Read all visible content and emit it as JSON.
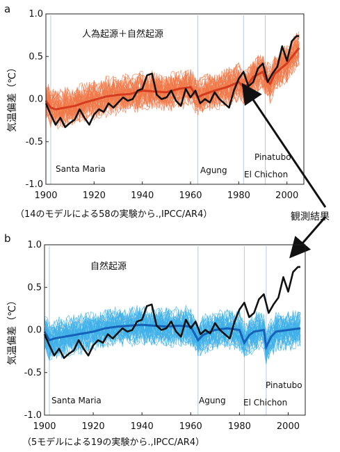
{
  "labels": {
    "observed": "観測結果"
  },
  "chart_data": [
    {
      "type": "line",
      "panel_label": "a",
      "title": "人為起源＋自然起源",
      "caption": "（14のモデルによる58の実験から.,IPCC/AR4）",
      "ylabel": "気温偏差（℃）",
      "xlim": [
        1900,
        2007
      ],
      "ylim": [
        -1.0,
        1.0
      ],
      "xticks": [
        "1900",
        "1920",
        "1940",
        "1960",
        "1980",
        "2000"
      ],
      "yticks": [
        "-1.0",
        "-0.5",
        "0.0",
        "0.5",
        "1.0"
      ],
      "annotations": [
        {
          "text": "Santa Maria",
          "year": 1902
        },
        {
          "text": "Agung",
          "year": 1963
        },
        {
          "text": "El Chichon",
          "year": 1982
        },
        {
          "text": "Pinatubo",
          "year": 1991
        }
      ],
      "colors": {
        "models": "#f07a4a",
        "mean": "#d63a1f",
        "observed": "#111111"
      },
      "series": [
        {
          "name": "観測結果",
          "x": [
            1900,
            1902,
            1904,
            1906,
            1908,
            1910,
            1912,
            1914,
            1916,
            1918,
            1920,
            1922,
            1924,
            1926,
            1928,
            1930,
            1932,
            1934,
            1936,
            1938,
            1940,
            1942,
            1944,
            1946,
            1948,
            1950,
            1952,
            1954,
            1956,
            1958,
            1960,
            1962,
            1964,
            1966,
            1968,
            1970,
            1972,
            1974,
            1976,
            1978,
            1980,
            1982,
            1984,
            1986,
            1988,
            1990,
            1992,
            1994,
            1996,
            1998,
            2000,
            2002,
            2004,
            2005
          ],
          "y": [
            -0.05,
            -0.18,
            -0.3,
            -0.22,
            -0.33,
            -0.28,
            -0.24,
            -0.12,
            -0.22,
            -0.3,
            -0.18,
            -0.12,
            -0.15,
            -0.05,
            -0.1,
            -0.04,
            0.02,
            -0.02,
            0.0,
            0.1,
            0.12,
            0.28,
            0.3,
            0.05,
            0.0,
            0.02,
            0.1,
            -0.02,
            -0.08,
            0.12,
            0.02,
            0.1,
            -0.05,
            0.0,
            -0.04,
            0.08,
            0.0,
            -0.05,
            -0.1,
            0.1,
            0.24,
            0.32,
            0.15,
            0.2,
            0.36,
            0.42,
            0.2,
            0.3,
            0.38,
            0.62,
            0.45,
            0.68,
            0.74,
            0.74
          ]
        },
        {
          "name": "",
          "x": [
            1900,
            1902,
            1904,
            1908,
            1912,
            1916,
            1920,
            1925,
            1930,
            1935,
            1940,
            1945,
            1950,
            1955,
            1960,
            1963,
            1965,
            1968,
            1970,
            1975,
            1980,
            1982,
            1984,
            1986,
            1990,
            1991,
            1993,
            1995,
            2000,
            2005
          ],
          "y": [
            -0.02,
            -0.1,
            -0.12,
            -0.1,
            -0.08,
            -0.04,
            -0.01,
            0.03,
            0.05,
            0.06,
            0.1,
            0.09,
            0.08,
            0.12,
            0.14,
            0.02,
            0.05,
            0.08,
            0.1,
            0.14,
            0.2,
            0.14,
            0.18,
            0.26,
            0.32,
            0.24,
            0.18,
            0.3,
            0.42,
            0.6
          ]
        }
      ]
    },
    {
      "type": "line",
      "panel_label": "b",
      "title": "自然起源",
      "caption": "（5モデルによる19の実験から.,IPCC/AR4）",
      "ylabel": "気温偏差（℃）",
      "xlim": [
        1900,
        2007
      ],
      "ylim": [
        -1.0,
        1.0
      ],
      "xticks": [
        "1900",
        "1920",
        "1940",
        "1960",
        "1980",
        "2000"
      ],
      "yticks": [
        "-1.0",
        "-0.5",
        "0.0",
        "0.5",
        "1.0"
      ],
      "annotations": [
        {
          "text": "Santa Maria",
          "year": 1902
        },
        {
          "text": "Agung",
          "year": 1963
        },
        {
          "text": "El Chichon",
          "year": 1982
        },
        {
          "text": "Pinatubo",
          "year": 1991
        }
      ],
      "colors": {
        "models": "#3fb0e8",
        "mean": "#1560b8",
        "observed": "#111111"
      },
      "series": [
        {
          "name": "観測結果",
          "x": [
            1900,
            1902,
            1904,
            1906,
            1908,
            1910,
            1912,
            1914,
            1916,
            1918,
            1920,
            1922,
            1924,
            1926,
            1928,
            1930,
            1932,
            1934,
            1936,
            1938,
            1940,
            1942,
            1944,
            1946,
            1948,
            1950,
            1952,
            1954,
            1956,
            1958,
            1960,
            1962,
            1964,
            1966,
            1968,
            1970,
            1972,
            1974,
            1976,
            1978,
            1980,
            1982,
            1984,
            1986,
            1988,
            1990,
            1992,
            1994,
            1996,
            1998,
            2000,
            2002,
            2004,
            2005
          ],
          "y": [
            -0.05,
            -0.18,
            -0.3,
            -0.22,
            -0.33,
            -0.28,
            -0.24,
            -0.12,
            -0.22,
            -0.3,
            -0.18,
            -0.12,
            -0.15,
            -0.05,
            -0.1,
            -0.04,
            0.02,
            -0.02,
            0.0,
            0.1,
            0.12,
            0.28,
            0.3,
            0.05,
            0.0,
            0.02,
            0.1,
            -0.02,
            -0.08,
            0.12,
            0.02,
            0.1,
            -0.05,
            0.0,
            -0.04,
            0.08,
            0.0,
            -0.05,
            -0.1,
            0.1,
            0.24,
            0.32,
            0.15,
            0.2,
            0.36,
            0.42,
            0.2,
            0.3,
            0.38,
            0.62,
            0.45,
            0.68,
            0.74,
            0.74
          ]
        },
        {
          "name": "",
          "x": [
            1900,
            1902,
            1904,
            1908,
            1912,
            1916,
            1920,
            1925,
            1930,
            1935,
            1940,
            1945,
            1950,
            1955,
            1960,
            1963,
            1965,
            1968,
            1970,
            1975,
            1980,
            1982,
            1984,
            1986,
            1990,
            1991,
            1993,
            1995,
            2000,
            2005
          ],
          "y": [
            -0.02,
            -0.12,
            -0.1,
            -0.08,
            -0.06,
            -0.04,
            -0.02,
            0.02,
            0.04,
            0.05,
            0.06,
            0.05,
            0.04,
            0.05,
            0.04,
            -0.12,
            -0.06,
            -0.02,
            0.0,
            0.02,
            0.0,
            -0.15,
            -0.06,
            -0.02,
            0.0,
            -0.2,
            -0.08,
            -0.02,
            0.0,
            0.02
          ]
        }
      ]
    }
  ]
}
